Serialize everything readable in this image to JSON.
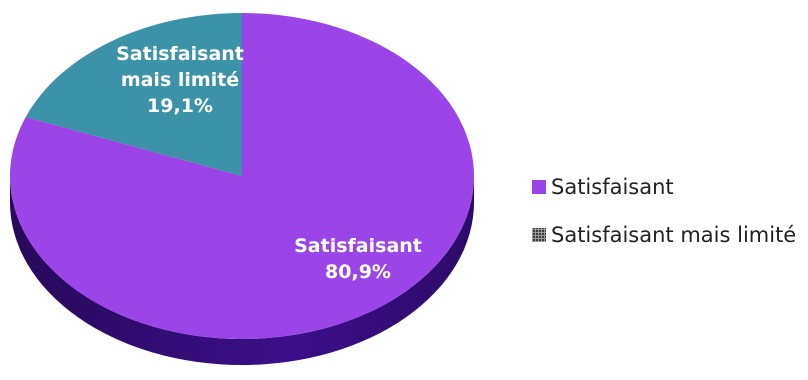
{
  "chart_data": {
    "type": "pie",
    "title": "",
    "slices": [
      {
        "label": "Satisfaisant",
        "value": 80.9,
        "value_label": "80,9%",
        "label_lines": [
          "Satisfaisant"
        ],
        "color": "#9b45e8",
        "side_color": "#3b0f8a"
      },
      {
        "label": "Satisfaisant mais limité",
        "value": 19.1,
        "value_label": "19,1%",
        "label_lines": [
          "Satisfaisant",
          "mais limité"
        ],
        "color": "#3c92a8",
        "side_color": "#1d5666"
      }
    ],
    "legend": {
      "placement": "right",
      "items": [
        {
          "label": "Satisfaisant",
          "color": "#9b45e8"
        },
        {
          "label": "Satisfaisant mais limité",
          "color": "#3a3a3a"
        }
      ]
    },
    "label_color": "#ffffff"
  }
}
